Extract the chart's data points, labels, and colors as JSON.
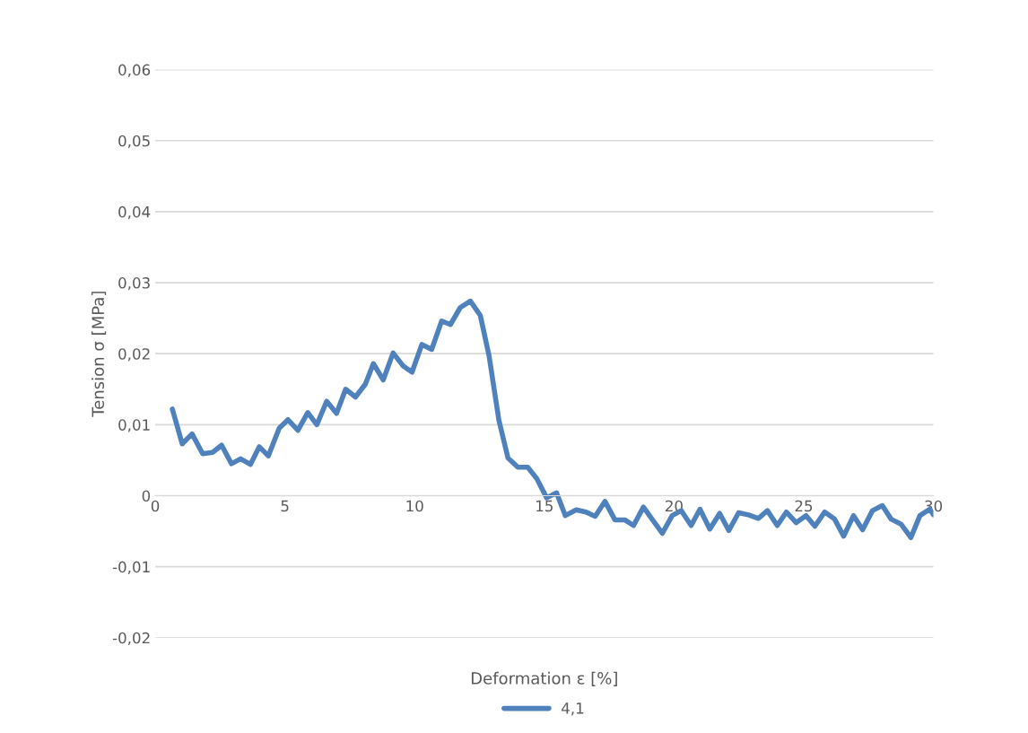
{
  "chart_data": {
    "type": "line",
    "xlabel": "Deformation ε [%]",
    "ylabel": "Tension σ [MPa]",
    "xlim": [
      0,
      30
    ],
    "xticks": [
      0,
      5,
      10,
      15,
      20,
      25,
      30
    ],
    "ylim": [
      -0.02,
      0.06
    ],
    "yticks": [
      {
        "value": -0.02,
        "label": "-0,02"
      },
      {
        "value": -0.01,
        "label": "-0,01"
      },
      {
        "value": 0,
        "label": "0"
      },
      {
        "value": 0.01,
        "label": "0,01"
      },
      {
        "value": 0.02,
        "label": "0,02"
      },
      {
        "value": 0.03,
        "label": "0,03"
      },
      {
        "value": 0.04,
        "label": "0,04"
      },
      {
        "value": 0.05,
        "label": "0,05"
      },
      {
        "value": 0.06,
        "label": "0,06"
      }
    ],
    "grid": "y",
    "legend": "bottom",
    "marker": "none",
    "line_style": "solid",
    "x": [
      0.66,
      1.04,
      1.42,
      1.83,
      2.21,
      2.56,
      2.94,
      3.29,
      3.67,
      4.01,
      4.36,
      4.78,
      5.12,
      5.5,
      5.88,
      6.23,
      6.61,
      6.99,
      7.34,
      7.72,
      8.1,
      8.41,
      8.79,
      9.17,
      9.55,
      9.9,
      10.28,
      10.66,
      11.04,
      11.38,
      11.76,
      12.15,
      12.53,
      12.87,
      13.25,
      13.6,
      13.98,
      14.36,
      14.71,
      15.09,
      15.47,
      15.81,
      16.23,
      16.61,
      16.96,
      17.34,
      17.72,
      18.1,
      18.44,
      18.82,
      19.17,
      19.55,
      19.93,
      20.28,
      20.66,
      21.0,
      21.38,
      21.76,
      22.11,
      22.49,
      22.87,
      23.25,
      23.6,
      23.98,
      24.33,
      24.71,
      25.09,
      25.43,
      25.81,
      26.19,
      26.54,
      26.92,
      27.27,
      27.65,
      28.03,
      28.37,
      28.75,
      29.13,
      29.48,
      29.86,
      30.0
    ],
    "series": [
      {
        "name": "4,1",
        "color": "#4f81bd",
        "values": [
          0.0122,
          0.0073,
          0.0087,
          0.0059,
          0.0061,
          0.0071,
          0.0045,
          0.0052,
          0.0044,
          0.0069,
          0.0056,
          0.0095,
          0.0107,
          0.0092,
          0.0117,
          0.01,
          0.0133,
          0.0116,
          0.015,
          0.0139,
          0.0157,
          0.0186,
          0.0163,
          0.0201,
          0.0183,
          0.0174,
          0.0213,
          0.0206,
          0.0246,
          0.0241,
          0.0265,
          0.0274,
          0.0254,
          0.0197,
          0.0106,
          0.0053,
          0.004,
          0.004,
          0.0024,
          -0.0003,
          0.0004,
          -0.0028,
          -0.002,
          -0.0023,
          -0.0029,
          -0.0008,
          -0.0034,
          -0.0034,
          -0.0042,
          -0.0016,
          -0.0034,
          -0.0053,
          -0.0028,
          -0.0021,
          -0.0042,
          -0.0019,
          -0.0047,
          -0.0025,
          -0.0049,
          -0.0024,
          -0.0027,
          -0.0032,
          -0.0021,
          -0.0042,
          -0.0023,
          -0.0038,
          -0.0028,
          -0.0043,
          -0.0023,
          -0.0033,
          -0.0057,
          -0.0028,
          -0.0048,
          -0.0021,
          -0.0014,
          -0.0033,
          -0.004,
          -0.0059,
          -0.0028,
          -0.0019,
          -0.0027
        ]
      }
    ]
  }
}
